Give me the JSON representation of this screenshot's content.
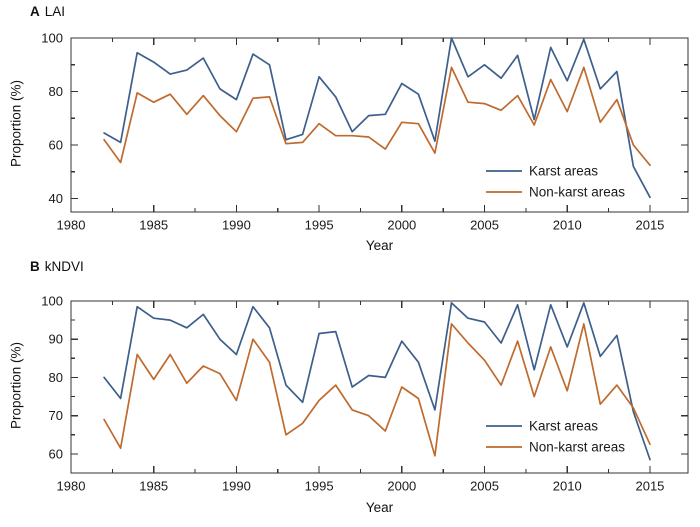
{
  "colors": {
    "karst": "#3d5f8c",
    "nonkarst": "#bf6a2e",
    "axis": "#333333",
    "text": "#1a1a1a"
  },
  "chart_data": [
    {
      "type": "line",
      "panel": "A",
      "title": "LAI",
      "xlabel": "Year",
      "ylabel": "Proportion (%)",
      "grid": false,
      "legend_position": "inside lower right",
      "xlim": [
        1980,
        2017.3
      ],
      "ylim": [
        35,
        100
      ],
      "xticks": [
        1980,
        1985,
        1990,
        1995,
        2000,
        2005,
        2010,
        2015
      ],
      "xminor": [
        1982.5,
        1987.5,
        1992.5,
        1997.5,
        2002.5,
        2007.5,
        2012.5
      ],
      "yticks": [
        40,
        60,
        80,
        100
      ],
      "yminor": [
        50,
        70,
        90
      ],
      "x": [
        1982,
        1983,
        1984,
        1985,
        1986,
        1987,
        1988,
        1989,
        1990,
        1991,
        1992,
        1993,
        1994,
        1995,
        1996,
        1997,
        1998,
        1999,
        2000,
        2001,
        2002,
        2003,
        2004,
        2005,
        2006,
        2007,
        2008,
        2009,
        2010,
        2011,
        2012,
        2013,
        2014,
        2015
      ],
      "series": [
        {
          "name": "Karst areas",
          "color_key": "karst",
          "values": [
            64.5,
            61,
            94.5,
            91,
            86.5,
            88,
            92.5,
            81,
            77,
            94,
            90,
            62,
            64,
            85.5,
            78,
            65,
            71,
            71.5,
            83,
            79,
            61.5,
            100,
            85.5,
            90,
            85,
            93.5,
            69.5,
            96.5,
            84,
            99.5,
            81,
            87.5,
            52,
            40.5
          ]
        },
        {
          "name": "Non-karst areas",
          "color_key": "nonkarst",
          "values": [
            62,
            53.5,
            79.5,
            76,
            79,
            71.5,
            78.5,
            71,
            65,
            77.5,
            78,
            60.5,
            61,
            68,
            63.5,
            63.5,
            63,
            58.5,
            68.5,
            68,
            57,
            89,
            76,
            75.5,
            73,
            78.5,
            67.5,
            84.5,
            72.5,
            89,
            68.5,
            77,
            60,
            52.5
          ]
        }
      ]
    },
    {
      "type": "line",
      "panel": "B",
      "title": "kNDVI",
      "xlabel": "Year",
      "ylabel": "Proportion (%)",
      "grid": false,
      "legend_position": "inside lower right",
      "xlim": [
        1980,
        2017.3
      ],
      "ylim": [
        55,
        100
      ],
      "xticks": [
        1980,
        1985,
        1990,
        1995,
        2000,
        2005,
        2010,
        2015
      ],
      "xminor": [
        1982.5,
        1987.5,
        1992.5,
        1997.5,
        2002.5,
        2007.5,
        2012.5
      ],
      "yticks": [
        60,
        70,
        80,
        90,
        100
      ],
      "yminor": [
        65,
        75,
        85,
        95
      ],
      "x": [
        1982,
        1983,
        1984,
        1985,
        1986,
        1987,
        1988,
        1989,
        1990,
        1991,
        1992,
        1993,
        1994,
        1995,
        1996,
        1997,
        1998,
        1999,
        2000,
        2001,
        2002,
        2003,
        2004,
        2005,
        2006,
        2007,
        2008,
        2009,
        2010,
        2011,
        2012,
        2013,
        2014,
        2015
      ],
      "series": [
        {
          "name": "Karst areas",
          "color_key": "karst",
          "values": [
            80,
            74.5,
            98.5,
            95.5,
            95,
            93,
            96.5,
            90,
            86,
            98.5,
            93,
            78,
            73.5,
            91.5,
            92,
            77.5,
            80.5,
            80,
            89.5,
            84,
            71.5,
            99.5,
            95.5,
            94.5,
            89,
            99,
            82,
            99,
            88,
            99.5,
            85.5,
            91,
            71,
            58.5
          ]
        },
        {
          "name": "Non-karst areas",
          "color_key": "nonkarst",
          "values": [
            69,
            61.5,
            86,
            79.5,
            86,
            78.5,
            83,
            81,
            74,
            90,
            84,
            65,
            68,
            74,
            78,
            71.5,
            70,
            66,
            77.5,
            74.5,
            59.5,
            94,
            89,
            84.5,
            78,
            89.5,
            75,
            88,
            76.5,
            94,
            73,
            78,
            72,
            62.5
          ]
        }
      ]
    }
  ]
}
